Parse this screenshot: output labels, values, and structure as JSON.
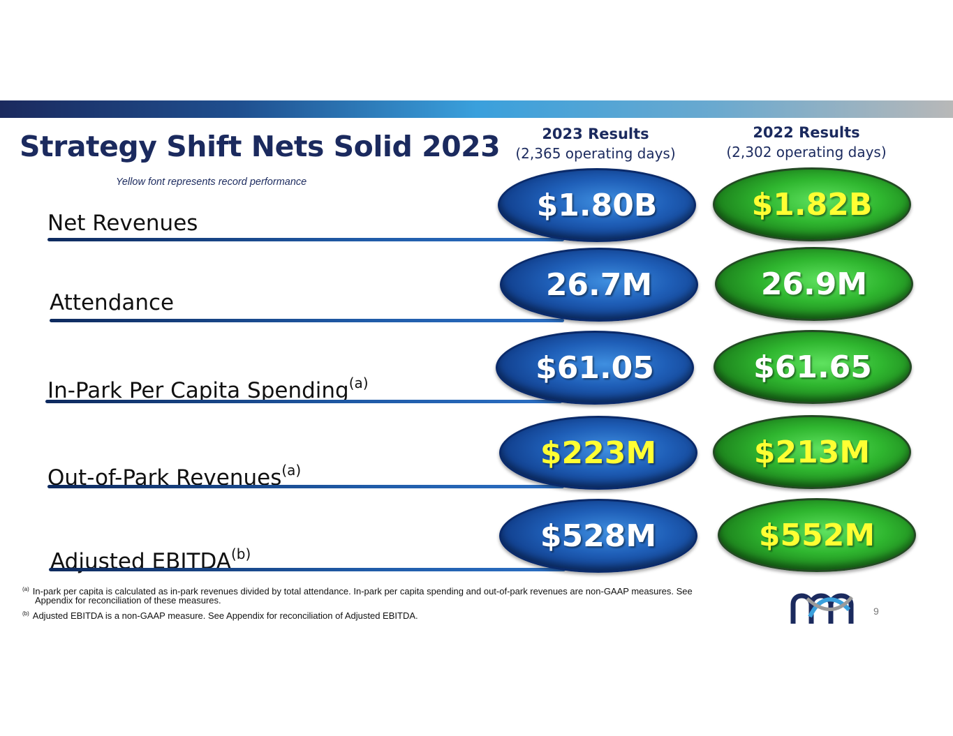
{
  "title": "Strategy Shift Nets Solid 2023",
  "subtitle": "Yellow font represents record performance",
  "columns": [
    {
      "heading": "2023 Results",
      "days": "(2,365 operating days)"
    },
    {
      "heading": "2022 Results",
      "days": "(2,302 operating days)"
    }
  ],
  "rows": [
    {
      "label": "Net Revenues",
      "note": "",
      "v2023": "$1.80B",
      "v2023_record": false,
      "v2022": "$1.82B",
      "v2022_record": true
    },
    {
      "label": "Attendance",
      "note": "",
      "v2023": "26.7M",
      "v2023_record": false,
      "v2022": "26.9M",
      "v2022_record": false
    },
    {
      "label": "In-Park Per Capita Spending",
      "note": "(a)",
      "v2023": "$61.05",
      "v2023_record": false,
      "v2022": "$61.65",
      "v2022_record": false
    },
    {
      "label": "Out-of-Park Revenues",
      "note": "(a)",
      "v2023": "$223M",
      "v2023_record": true,
      "v2022": "$213M",
      "v2022_record": true
    },
    {
      "label": "Adjusted EBITDA",
      "note": "(b)",
      "v2023": "$528M",
      "v2023_record": false,
      "v2022": "$552M",
      "v2022_record": true
    }
  ],
  "footnotes": [
    {
      "marker": "(a)",
      "text": "In-park per capita is calculated as in-park revenues divided by total attendance.  In-park per capita spending and out-of-park revenues are non-GAAP measures.  See",
      "cont": "Appendix for reconciliation of these measures."
    },
    {
      "marker": "(b)",
      "text": "Adjusted EBITDA is a non-GAAP measure. See Appendix for reconciliation of Adjusted EBITDA."
    }
  ],
  "page_number": "9",
  "colors": {
    "navy": "#1b2a5e",
    "record_yellow": "#ffff33",
    "oval_blue": "#1f5fb8",
    "oval_green": "#2fb62f"
  },
  "icons": {
    "logo": "six-flags-logo-icon"
  }
}
